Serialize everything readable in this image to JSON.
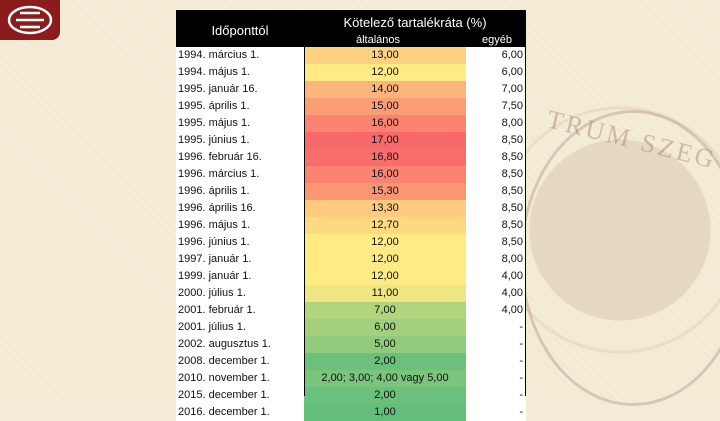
{
  "header": {
    "col_date": "Időponttól",
    "col_rate": "Kötelező tartalékráta (%)",
    "sub_general": "általános",
    "sub_other": "egyéb"
  },
  "colors": {
    "header_bg": "#000000",
    "scale_high": "#f8696b",
    "scale_mid": "#ffeb84",
    "scale_low": "#63be7b"
  },
  "rows": [
    {
      "date": "1994. március 1.",
      "general": "13,00",
      "other": "6,00",
      "color": "#fdd17f"
    },
    {
      "date": "1994. május 1.",
      "general": "12,00",
      "other": "6,00",
      "color": "#ffeb84"
    },
    {
      "date": "1995. január 16.",
      "general": "14,00",
      "other": "7,00",
      "color": "#fcb57a"
    },
    {
      "date": "1995. április 1.",
      "general": "15,00",
      "other": "7,50",
      "color": "#fb9d75"
    },
    {
      "date": "1995. május 1.",
      "general": "16,00",
      "other": "8,00",
      "color": "#fa8371"
    },
    {
      "date": "1995. június 1.",
      "general": "17,00",
      "other": "8,50",
      "color": "#f8696b"
    },
    {
      "date": "1996. február 16.",
      "general": "16,80",
      "other": "8,50",
      "color": "#f96e6c"
    },
    {
      "date": "1996. március 1.",
      "general": "16,00",
      "other": "8,50",
      "color": "#fa8371"
    },
    {
      "date": "1996. április 1.",
      "general": "15,30",
      "other": "8,50",
      "color": "#fb9674"
    },
    {
      "date": "1996. április 16.",
      "general": "13,30",
      "other": "8,50",
      "color": "#fdca7e"
    },
    {
      "date": "1996. május 1.",
      "general": "12,70",
      "other": "8,50",
      "color": "#fed981"
    },
    {
      "date": "1996. június 1.",
      "general": "12,00",
      "other": "8,50",
      "color": "#ffeb84"
    },
    {
      "date": "1997. január 1.",
      "general": "12,00",
      "other": "8,00",
      "color": "#ffeb84"
    },
    {
      "date": "1999. január 1.",
      "general": "12,00",
      "other": "4,00",
      "color": "#ffeb84"
    },
    {
      "date": "2000. július 1.",
      "general": "11,00",
      "other": "4,00",
      "color": "#eee683"
    },
    {
      "date": "2001. február 1.",
      "general": "7,00",
      "other": "4,00",
      "color": "#b1d47f"
    },
    {
      "date": "2001. július 1.",
      "general": "6,00",
      "other": "-",
      "color": "#a2d07e"
    },
    {
      "date": "2002. augusztus 1.",
      "general": "5,00",
      "other": "-",
      "color": "#92cb7d"
    },
    {
      "date": "2008. december 1.",
      "general": "2,00",
      "other": "-",
      "color": "#6bc07b"
    },
    {
      "date": "2010. november 1.",
      "general": "2,00; 3,00; 4,00 vagy 5,00",
      "other": "-",
      "color": "#7ac47c"
    },
    {
      "date": "2015. december 1.",
      "general": "2,00",
      "other": "-",
      "color": "#6bc07b"
    },
    {
      "date": "2016. december 1.",
      "general": "1,00",
      "other": "-",
      "color": "#63be7b"
    }
  ]
}
